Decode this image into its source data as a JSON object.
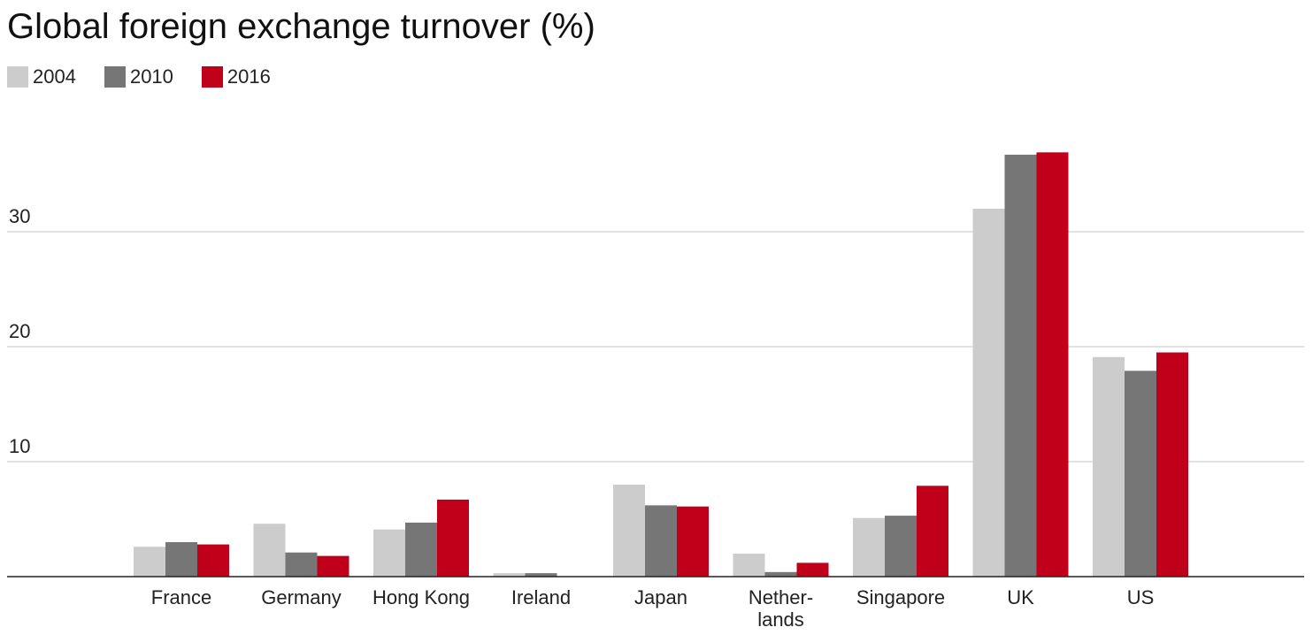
{
  "title": "Global foreign exchange turnover (%)",
  "legend": [
    {
      "label": "2004",
      "color": "#cccccc"
    },
    {
      "label": "2010",
      "color": "#767676"
    },
    {
      "label": "2016",
      "color": "#c0001a"
    }
  ],
  "chart_data": {
    "type": "bar",
    "title": "Global foreign exchange turnover (%)",
    "xlabel": "",
    "ylabel": "",
    "categories": [
      "France",
      "Germany",
      "Hong Kong",
      "Ireland",
      "Japan",
      "Nether-\nlands",
      "Singapore",
      "UK",
      "US"
    ],
    "series": [
      {
        "name": "2004",
        "color": "#cccccc",
        "values": [
          2.6,
          4.6,
          4.1,
          0.3,
          8.0,
          2.0,
          5.1,
          32.0,
          19.1
        ]
      },
      {
        "name": "2010",
        "color": "#767676",
        "values": [
          3.0,
          2.1,
          4.7,
          0.3,
          6.2,
          0.4,
          5.3,
          36.7,
          17.9
        ]
      },
      {
        "name": "2016",
        "color": "#c0001a",
        "values": [
          2.8,
          1.8,
          6.7,
          0.0,
          6.1,
          1.2,
          7.9,
          36.9,
          19.5
        ]
      }
    ],
    "yticks": [
      10,
      20,
      30
    ],
    "ylim": [
      0,
      40
    ],
    "grid": true,
    "legend_position": "top-left"
  }
}
